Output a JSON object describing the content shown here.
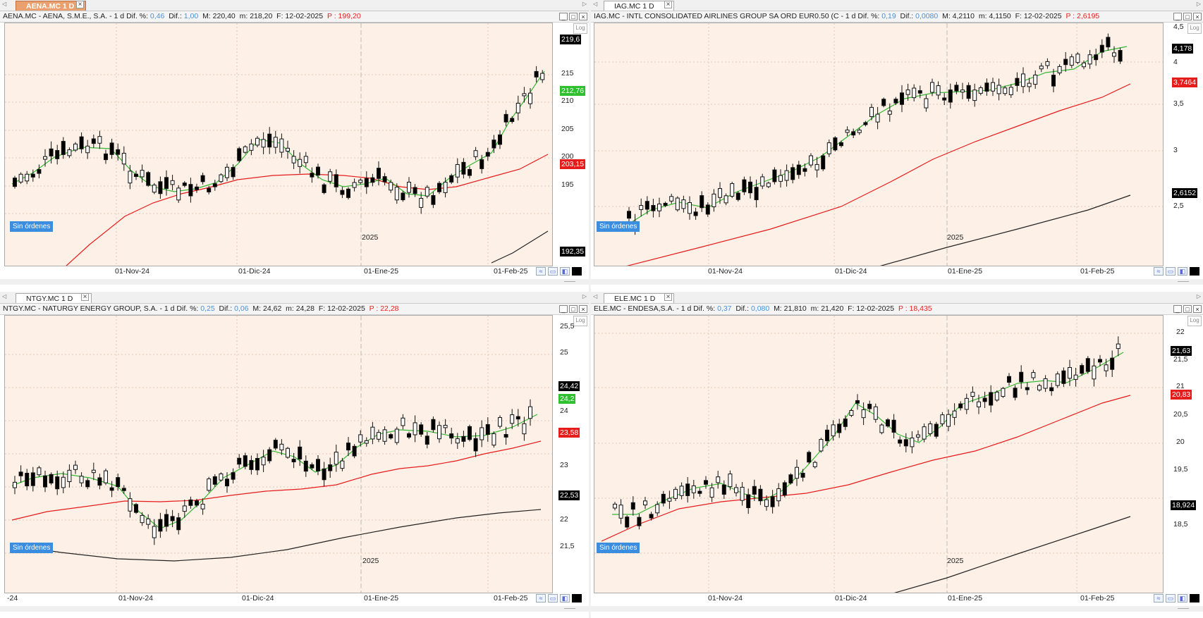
{
  "colors": {
    "plot_bg": "#fdf0e6",
    "ema_short": "#34b834",
    "ma_medium": "#e61c1c",
    "ma_long": "#222222",
    "tab_active": "#e9a06e",
    "badge": "#3a8ddf"
  },
  "common": {
    "log_label": "Log",
    "orders_badge": "Sin órdenes",
    "year_label": "2025",
    "icons": [
      "restore-icon",
      "maximize-icon",
      "close-icon",
      "wave-icon",
      "save-icon",
      "panel-icon",
      "color-icon"
    ]
  },
  "panes": [
    {
      "tab": "AENA.MC 1 D",
      "tab_active": true,
      "header": {
        "title": "AENA.MC - AENA, S.M.E., S.A. -  1 d",
        "pct_label": "Dif. %:",
        "pct": "0,46",
        "dif_label": "Dif.:",
        "dif": "1,00",
        "max": "M: 220,40",
        "min": "m: 218,20",
        "date": "F: 12-02-2025",
        "p_label": "P :",
        "p": "199,20"
      },
      "yticks": [
        "215",
        "210",
        "205",
        "200",
        "195"
      ],
      "dates": [
        "01-Nov-24",
        "01-Dic-24",
        "01-Ene-25",
        "01-Feb-25"
      ],
      "tags": [
        {
          "text": "219,6",
          "color": "black"
        },
        {
          "text": "212,76",
          "color": "green"
        },
        {
          "text": "203,15",
          "color": "red"
        },
        {
          "text": "192,35",
          "color": "black"
        }
      ]
    },
    {
      "tab": "IAG.MC 1 D",
      "tab_active": false,
      "header": {
        "title": "IAG.MC - INTL CONSOLIDATED AIRLINES GROUP SA ORD EUR0.50 (C -  1 d",
        "pct_label": "Dif. %:",
        "pct": "0,19",
        "dif_label": "Dif.:",
        "dif": "0,0080",
        "max": "M: 4,2110",
        "min": "m: 4,1150",
        "date": "F: 12-02-2025",
        "p_label": "P :",
        "p": "2,6195"
      },
      "yticks": [
        "4,5",
        "4",
        "3,5",
        "3",
        "2,5"
      ],
      "dates": [
        "01-Nov-24",
        "01-Dic-24",
        "01-Ene-25",
        "01-Feb-25"
      ],
      "tags": [
        {
          "text": "4,178",
          "color": "black"
        },
        {
          "text": "3,7464",
          "color": "red"
        },
        {
          "text": "2,6152",
          "color": "black"
        }
      ]
    },
    {
      "tab": "NTGY.MC 1 D",
      "tab_active": false,
      "header": {
        "title": "NTGY.MC - NATURGY ENERGY GROUP, S.A. -  1 d",
        "pct_label": "Dif. %:",
        "pct": "0,25",
        "dif_label": "Dif.:",
        "dif": "0,06",
        "max": "M: 24,62",
        "min": "m: 24,28",
        "date": "F: 12-02-2025",
        "p_label": "P :",
        "p": "22,28"
      },
      "yticks": [
        "25,5",
        "25",
        "24",
        "23",
        "22",
        "21,5"
      ],
      "dates": [
        "-24",
        "01-Nov-24",
        "01-Dic-24",
        "01-Ene-25",
        "01-Feb-25"
      ],
      "tags": [
        {
          "text": "24,42",
          "color": "black"
        },
        {
          "text": "24,2",
          "color": "green"
        },
        {
          "text": "23,58",
          "color": "red"
        },
        {
          "text": "22,53",
          "color": "black"
        }
      ]
    },
    {
      "tab": "ELE.MC 1 D",
      "tab_active": false,
      "header": {
        "title": "ELE.MC - ENDESA,S.A. -  1 d",
        "pct_label": "Dif. %:",
        "pct": "0,37",
        "dif_label": "Dif.:",
        "dif": "0,080",
        "max": "M: 21,810",
        "min": "m: 21,420",
        "date": "F: 12-02-2025",
        "p_label": "P :",
        "p": "18,435"
      },
      "yticks": [
        "22",
        "21,5",
        "21",
        "20,5",
        "20",
        "19,5",
        "18,5"
      ],
      "dates": [
        "01-Nov-24",
        "01-Dic-24",
        "01-Ene-25",
        "01-Feb-25"
      ],
      "tags": [
        {
          "text": "21,63",
          "color": "black"
        },
        {
          "text": "20,83",
          "color": "red"
        },
        {
          "text": "18,924",
          "color": "black"
        }
      ]
    }
  ]
}
